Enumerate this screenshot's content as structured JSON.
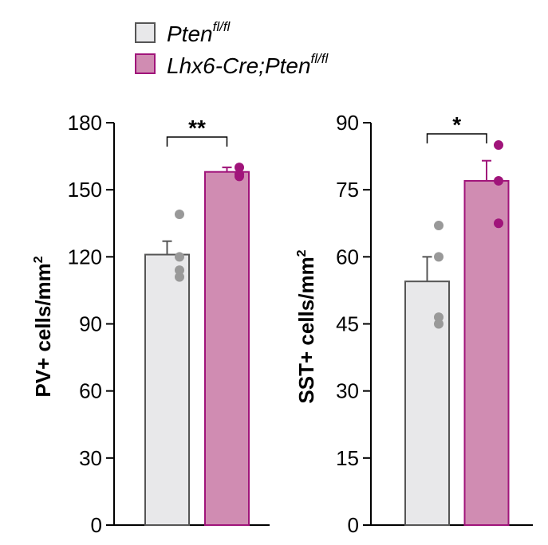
{
  "legend": {
    "items": [
      {
        "base": "Pten",
        "sup": "fl/fl",
        "fill": "#e8e8ea",
        "stroke": "#555555"
      },
      {
        "base": "Lhx6-Cre;Pten",
        "sup": "fl/fl",
        "fill": "#d08cb2",
        "stroke": "#a0147a"
      }
    ]
  },
  "chart_data": [
    {
      "type": "bar",
      "ylabel": "PV+ cells/mm",
      "ylabel_sup": "2",
      "ylim": [
        0,
        180
      ],
      "yticks": [
        0,
        30,
        60,
        90,
        120,
        150,
        180
      ],
      "ytick_labels": [
        "0",
        "30",
        "60",
        "90",
        "120",
        "150",
        "180"
      ],
      "significance": "**",
      "series": [
        {
          "value": 121,
          "error": 6,
          "points": [
            139,
            120,
            114,
            111
          ],
          "fill": "#e8e8ea",
          "stroke": "#555555",
          "point_color": "#999999"
        },
        {
          "value": 158,
          "error": 2,
          "points": [
            160,
            157,
            156
          ],
          "fill": "#d08cb2",
          "stroke": "#a0147a",
          "point_color": "#a0147a"
        }
      ]
    },
    {
      "type": "bar",
      "ylabel": "SST+ cells/mm",
      "ylabel_sup": "2",
      "ylim": [
        0,
        90
      ],
      "yticks": [
        0,
        15,
        30,
        45,
        60,
        75,
        90
      ],
      "ytick_labels": [
        "0",
        "15",
        "30",
        "45",
        "60",
        "75",
        "90"
      ],
      "significance": "*",
      "series": [
        {
          "value": 54.5,
          "error": 5.5,
          "points": [
            67,
            60,
            46.5,
            45
          ],
          "fill": "#e8e8ea",
          "stroke": "#555555",
          "point_color": "#999999"
        },
        {
          "value": 77,
          "error": 4.5,
          "points": [
            85,
            77,
            67.5
          ],
          "fill": "#d08cb2",
          "stroke": "#a0147a",
          "point_color": "#a0147a"
        }
      ]
    }
  ]
}
